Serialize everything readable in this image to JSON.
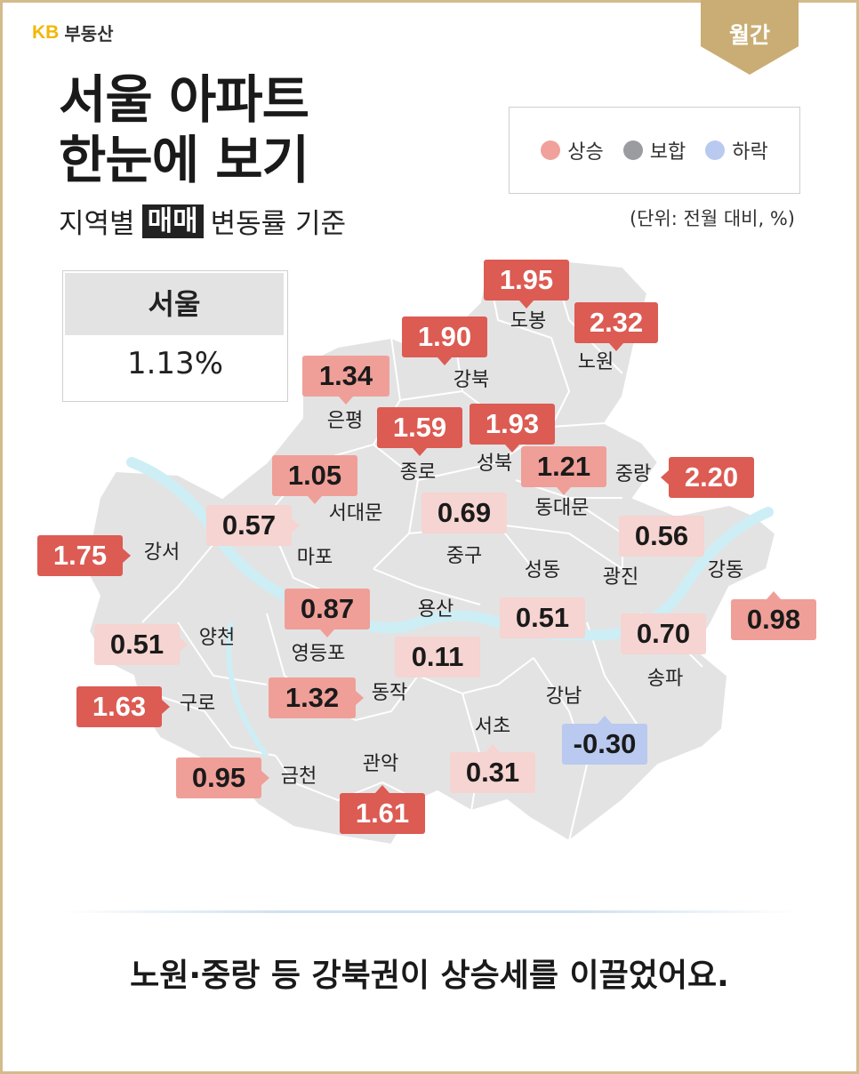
{
  "brand": {
    "kb": "KB",
    "name": "부동산"
  },
  "ribbon": "월간",
  "title": {
    "line1": "서울 아파트",
    "line2": "한눈에 보기"
  },
  "subtitle": {
    "pre": "지역별",
    "highlight": "매매",
    "post": "변동률 기준"
  },
  "legend": [
    {
      "label": "상승",
      "color": "#f0a19c"
    },
    {
      "label": "보합",
      "color": "#9a9ca0"
    },
    {
      "label": "하락",
      "color": "#b9c9ef"
    }
  ],
  "unit": "(단위: 전월 대비, %)",
  "seoul": {
    "label": "서울",
    "value": "1.13%"
  },
  "colors": {
    "strong": "#dc5b53",
    "medium": "#ef9f98",
    "light": "#f6d4d1",
    "down": "#b9c9ef",
    "map": "#e3e3e3",
    "river": "#cdeef5"
  },
  "districts": [
    {
      "name": "도봉",
      "value": "1.95"
    },
    {
      "name": "노원",
      "value": "2.32"
    },
    {
      "name": "강북",
      "value": "1.90"
    },
    {
      "name": "은평",
      "value": "1.34"
    },
    {
      "name": "종로",
      "value": "1.59"
    },
    {
      "name": "성북",
      "value": "1.93"
    },
    {
      "name": "동대문",
      "value": "1.21"
    },
    {
      "name": "중랑",
      "value": "2.20"
    },
    {
      "name": "서대문",
      "value": "1.05"
    },
    {
      "name": "마포",
      "value": "0.57"
    },
    {
      "name": "중구",
      "value": "0.69"
    },
    {
      "name": "광진",
      "value": "0.56"
    },
    {
      "name": "강서",
      "value": "1.75"
    },
    {
      "name": "성동",
      "value": "0.51"
    },
    {
      "name": "강동",
      "value": "0.98"
    },
    {
      "name": "용산",
      "value": "0.11"
    },
    {
      "name": "영등포",
      "value": "0.87"
    },
    {
      "name": "양천",
      "value": "0.51"
    },
    {
      "name": "송파",
      "value": "0.70"
    },
    {
      "name": "구로",
      "value": "1.63"
    },
    {
      "name": "동작",
      "value": "1.32"
    },
    {
      "name": "강남",
      "value": "-0.30"
    },
    {
      "name": "서초",
      "value": "0.31"
    },
    {
      "name": "금천",
      "value": "0.95"
    },
    {
      "name": "관악",
      "value": "1.61"
    }
  ],
  "footer": "노원·중랑 등 강북권이 상승세를 이끌었어요."
}
